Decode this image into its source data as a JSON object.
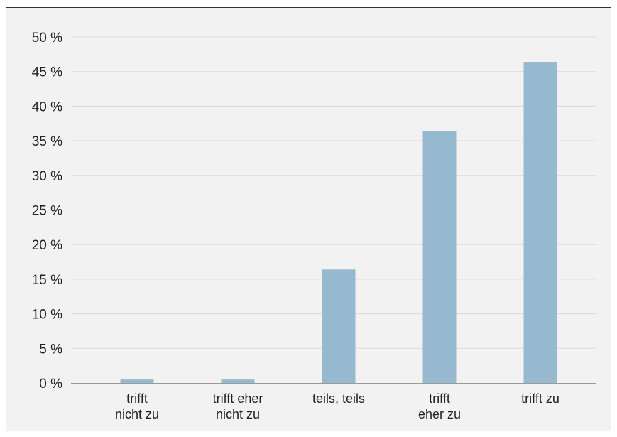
{
  "chart_data": {
    "type": "bar",
    "categories": [
      [
        "trifft",
        "nicht zu"
      ],
      [
        "trifft eher",
        "nicht zu"
      ],
      [
        "teils, teils"
      ],
      [
        "trifft",
        "eher zu"
      ],
      [
        "trifft zu"
      ]
    ],
    "values": [
      0.5,
      0.5,
      16.4,
      36.4,
      46.4
    ],
    "ylim": [
      0,
      50
    ],
    "yticks": [
      0,
      5,
      10,
      15,
      20,
      25,
      30,
      35,
      40,
      45,
      50
    ],
    "ytick_labels": [
      "0 %",
      "5 %",
      "10 %",
      "15 %",
      "20 %",
      "25 %",
      "30 %",
      "35 %",
      "40 %",
      "45 %",
      "50 %"
    ],
    "grid": true,
    "colors": {
      "bar": "#97b9cf",
      "grid": "#d9d9d9",
      "axis": "#9a9a9a",
      "background": "#f2f2f2"
    }
  }
}
